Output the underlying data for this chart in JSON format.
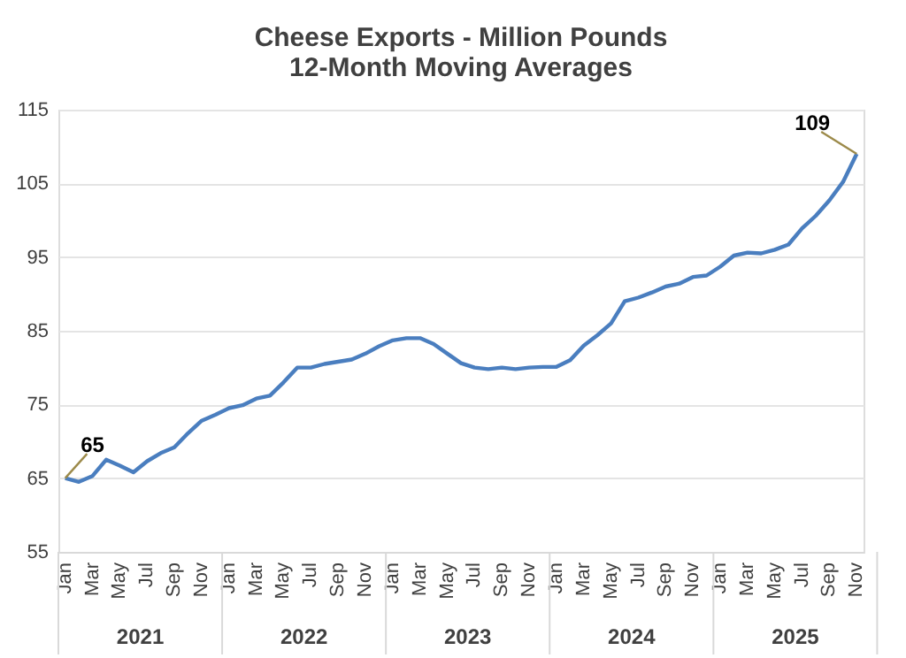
{
  "chart_data": {
    "type": "line",
    "title": "Cheese Exports - Million Pounds\n12-Month Moving Averages",
    "categories": [
      "Jan",
      null,
      "Mar",
      null,
      "May",
      null,
      "Jul",
      null,
      "Sep",
      null,
      "Nov",
      null,
      "Jan",
      null,
      "Mar",
      null,
      "May",
      null,
      "Jul",
      null,
      "Sep",
      null,
      "Nov",
      null,
      "Jan",
      null,
      "Mar",
      null,
      "May",
      null,
      "Jul",
      null,
      "Sep",
      null,
      "Nov",
      null,
      "Jan",
      null,
      "Mar",
      null,
      "May",
      null,
      "Jul",
      null,
      "Sep",
      null,
      "Nov",
      null,
      "Jan",
      null,
      "Mar",
      null,
      "May",
      null,
      "Jul",
      null,
      "Sep",
      null,
      "Nov"
    ],
    "series": [
      {
        "color": "#4a7ebf",
        "values": [
          65,
          64.5,
          65.3,
          67.5,
          66.7,
          65.8,
          67.3,
          68.4,
          69.2,
          71.1,
          72.8,
          73.6,
          74.5,
          74.9,
          75.8,
          76.2,
          78.0,
          80.0,
          80.0,
          80.5,
          80.8,
          81.1,
          81.9,
          82.9,
          83.7,
          84.0,
          84.0,
          83.2,
          81.9,
          80.6,
          80.0,
          79.8,
          80.0,
          79.8,
          80.0,
          80.1,
          80.1,
          81.0,
          83.0,
          84.4,
          86.0,
          89.0,
          89.5,
          90.2,
          91.0,
          91.4,
          92.3,
          92.5,
          93.7,
          95.2,
          95.6,
          95.5,
          96.0,
          96.7,
          98.9,
          100.6,
          102.7,
          105.2,
          109
        ],
        "value_labels": [
          "65",
          null,
          null,
          null,
          null,
          null,
          null,
          null,
          null,
          null,
          null,
          null,
          null,
          null,
          null,
          null,
          null,
          null,
          null,
          null,
          null,
          null,
          null,
          null,
          null,
          null,
          null,
          null,
          null,
          null,
          null,
          null,
          null,
          null,
          null,
          null,
          null,
          null,
          null,
          null,
          null,
          null,
          null,
          null,
          null,
          null,
          null,
          null,
          null,
          null,
          null,
          null,
          null,
          null,
          null,
          null,
          null,
          null,
          "109"
        ]
      }
    ],
    "annotations": [
      "2021",
      "2022",
      "2023",
      "2024",
      "2025"
    ],
    "ylim": [
      55,
      115
    ],
    "yticks": [
      55,
      65,
      75,
      85,
      95,
      105,
      115
    ],
    "grid": "y",
    "marker": "none",
    "line_style": "solid"
  }
}
